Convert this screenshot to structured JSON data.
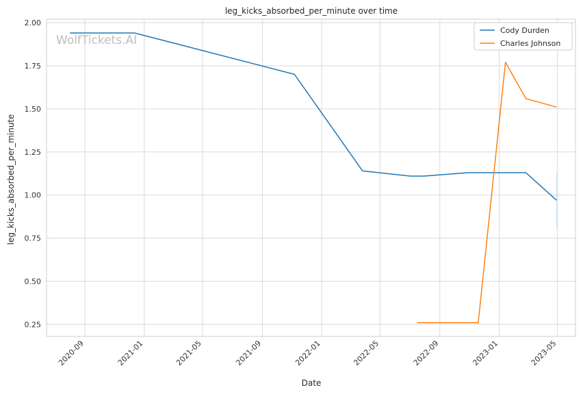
{
  "chart_data": {
    "type": "line",
    "title": "leg_kicks_absorbed_per_minute over time",
    "xlabel": "Date",
    "ylabel": "leg_kicks_absorbed_per_minute",
    "watermark": "WolfTickets.AI",
    "xlim": [
      "2020-06-14",
      "2023-06-07"
    ],
    "ylim": [
      0.18,
      2.02
    ],
    "x_ticks": [
      "2020-09",
      "2021-01",
      "2021-05",
      "2021-09",
      "2022-01",
      "2022-05",
      "2022-09",
      "2023-01",
      "2023-05"
    ],
    "y_ticks": [
      0.25,
      0.5,
      0.75,
      1.0,
      1.25,
      1.5,
      1.75,
      2.0
    ],
    "y_tick_labels": [
      "0.25",
      "0.50",
      "0.75",
      "1.00",
      "1.25",
      "1.50",
      "1.75",
      "2.00"
    ],
    "grid": true,
    "legend_position": "top-right",
    "colors": {
      "Cody Durden": "#1f77b4",
      "Charles Johnson": "#ff7f0e"
    },
    "series": [
      {
        "name": "Cody Durden",
        "x": [
          "2020-08-01",
          "2020-12-12",
          "2021-11-06",
          "2022-03-26",
          "2022-07-02",
          "2022-07-30",
          "2022-10-29",
          "2023-02-25",
          "2023-04-29"
        ],
        "y": [
          1.94,
          1.94,
          1.7,
          1.14,
          1.11,
          1.11,
          1.13,
          1.13,
          0.97
        ]
      },
      {
        "name": "Charles Johnson",
        "x": [
          "2022-07-16",
          "2022-11-19",
          "2023-01-14",
          "2023-02-25",
          "2023-04-29"
        ],
        "y": [
          0.26,
          0.26,
          1.77,
          1.56,
          1.51
        ]
      }
    ]
  }
}
